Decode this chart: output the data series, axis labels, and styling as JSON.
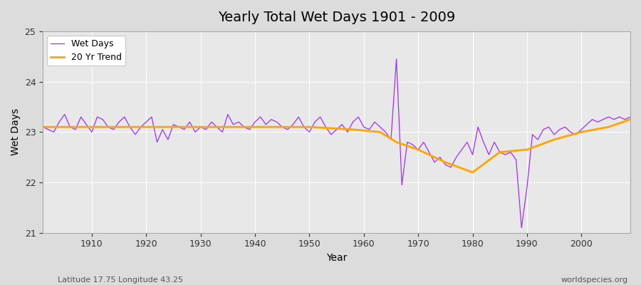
{
  "title": "Yearly Total Wet Days 1901 - 2009",
  "xlabel": "Year",
  "ylabel": "Wet Days",
  "lat_lon_label": "Latitude 17.75 Longitude 43.25",
  "watermark": "worldspecies.org",
  "legend_labels": [
    "Wet Days",
    "20 Yr Trend"
  ],
  "line_color_wet": "#9B30FF",
  "line_color_trend": "#FFA500",
  "bg_color": "#DCDCDC",
  "plot_bg_color": "#E8E8E8",
  "ylim": [
    21,
    25
  ],
  "xlim": [
    1901,
    2009
  ],
  "yticks": [
    21,
    22,
    23,
    24,
    25
  ],
  "xticks": [
    1910,
    1920,
    1930,
    1940,
    1950,
    1960,
    1970,
    1980,
    1990,
    2000
  ],
  "years": [
    1901,
    1902,
    1903,
    1904,
    1905,
    1906,
    1907,
    1908,
    1909,
    1910,
    1911,
    1912,
    1913,
    1914,
    1915,
    1916,
    1917,
    1918,
    1919,
    1920,
    1921,
    1922,
    1923,
    1924,
    1925,
    1926,
    1927,
    1928,
    1929,
    1930,
    1931,
    1932,
    1933,
    1934,
    1935,
    1936,
    1937,
    1938,
    1939,
    1940,
    1941,
    1942,
    1943,
    1944,
    1945,
    1946,
    1947,
    1948,
    1949,
    1950,
    1951,
    1952,
    1953,
    1954,
    1955,
    1956,
    1957,
    1958,
    1959,
    1960,
    1961,
    1962,
    1963,
    1964,
    1965,
    1966,
    1967,
    1968,
    1969,
    1970,
    1971,
    1972,
    1973,
    1974,
    1975,
    1976,
    1977,
    1978,
    1979,
    1980,
    1981,
    1982,
    1983,
    1984,
    1985,
    1986,
    1987,
    1988,
    1989,
    1990,
    1991,
    1992,
    1993,
    1994,
    1995,
    1996,
    1997,
    1998,
    1999,
    2000,
    2001,
    2002,
    2003,
    2004,
    2005,
    2006,
    2007,
    2008,
    2009
  ],
  "wet_days": [
    23.1,
    23.05,
    23.0,
    23.2,
    23.35,
    23.1,
    23.05,
    23.3,
    23.15,
    23.0,
    23.3,
    23.25,
    23.1,
    23.05,
    23.2,
    23.3,
    23.1,
    22.95,
    23.1,
    23.2,
    23.3,
    22.8,
    23.05,
    22.85,
    23.15,
    23.1,
    23.05,
    23.2,
    23.0,
    23.1,
    23.05,
    23.2,
    23.1,
    23.0,
    23.35,
    23.15,
    23.2,
    23.1,
    23.05,
    23.2,
    23.3,
    23.15,
    23.25,
    23.2,
    23.1,
    23.05,
    23.15,
    23.3,
    23.1,
    23.0,
    23.2,
    23.3,
    23.1,
    22.95,
    23.05,
    23.15,
    23.0,
    23.2,
    23.3,
    23.1,
    23.05,
    23.2,
    23.1,
    23.0,
    22.85,
    24.45,
    21.95,
    22.8,
    22.75,
    22.65,
    22.8,
    22.6,
    22.4,
    22.5,
    22.35,
    22.3,
    22.5,
    22.65,
    22.8,
    22.55,
    23.1,
    22.8,
    22.55,
    22.8,
    22.6,
    22.55,
    22.6,
    22.45,
    21.1,
    21.9,
    22.95,
    22.85,
    23.05,
    23.1,
    22.95,
    23.05,
    23.1,
    23.0,
    22.95,
    23.05,
    23.15,
    23.25,
    23.2,
    23.25,
    23.3,
    23.25,
    23.3,
    23.25,
    23.3
  ],
  "trend_years": [
    1901,
    1910,
    1920,
    1930,
    1940,
    1950,
    1958,
    1963,
    1966,
    1970,
    1975,
    1980,
    1985,
    1990,
    1995,
    2000,
    2005,
    2009
  ],
  "trend_values": [
    23.1,
    23.1,
    23.1,
    23.1,
    23.1,
    23.1,
    23.05,
    23.0,
    22.8,
    22.65,
    22.4,
    22.2,
    22.6,
    22.65,
    22.85,
    23.0,
    23.1,
    23.25
  ]
}
